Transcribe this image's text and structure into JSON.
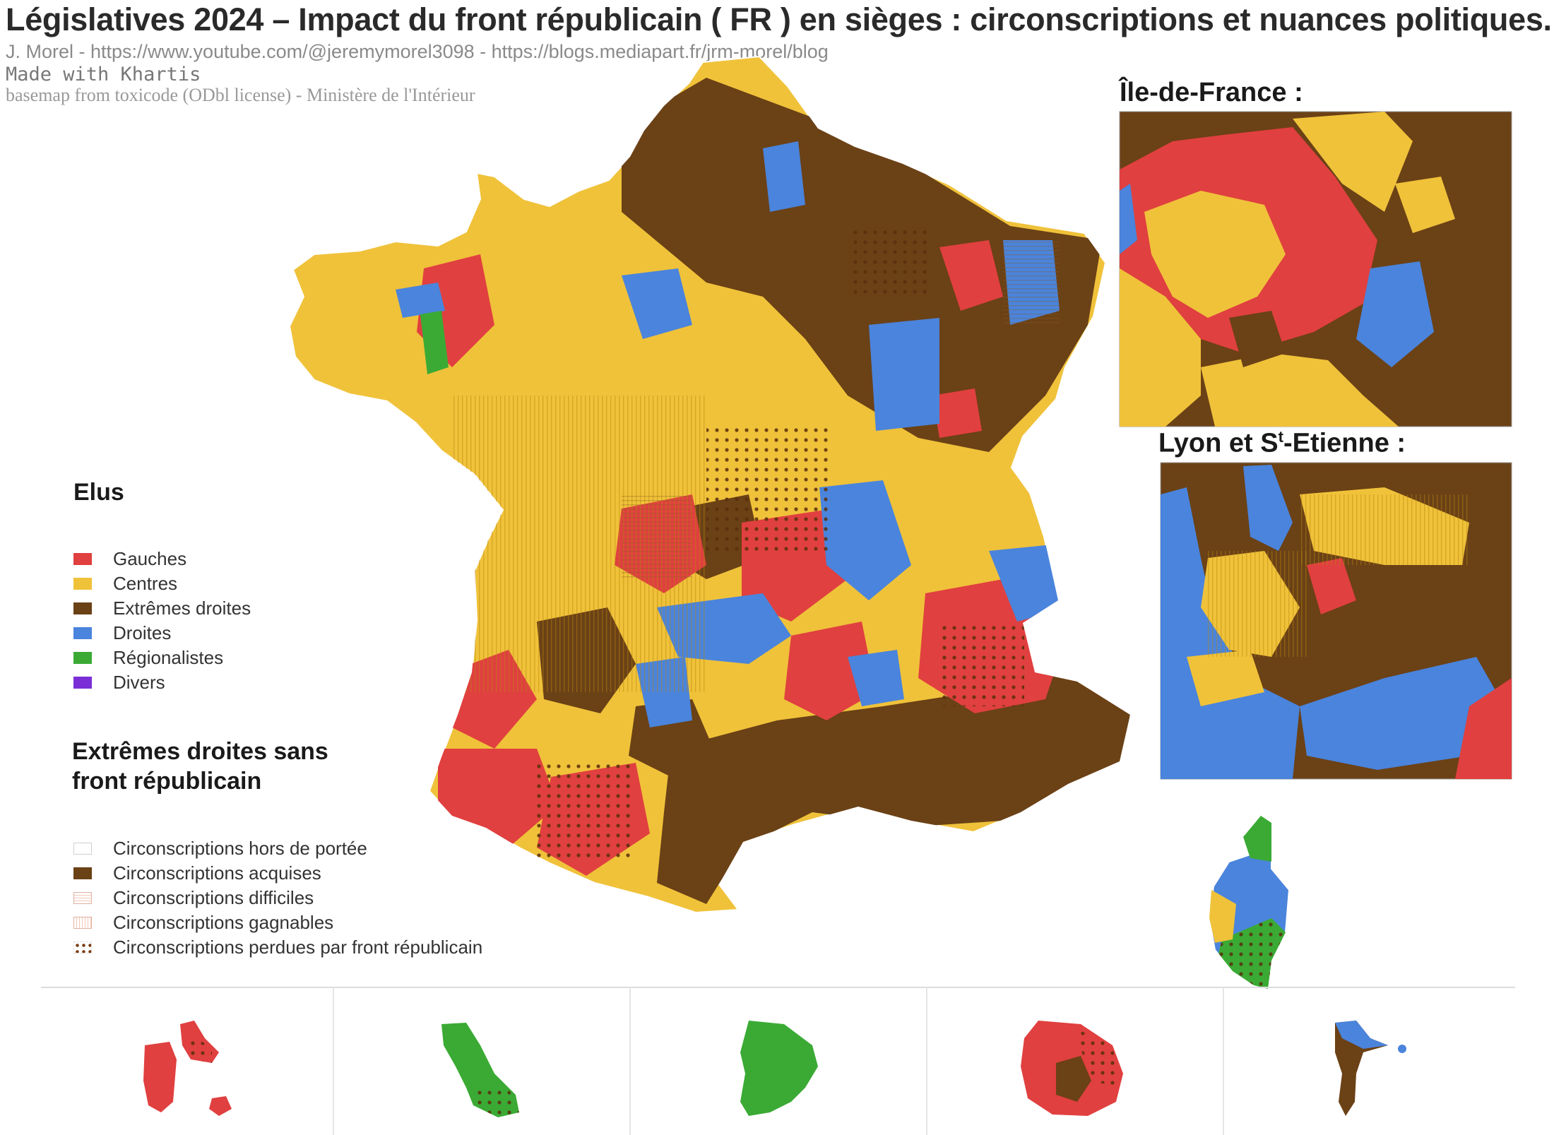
{
  "header": {
    "title": "Législatives 2024 – Impact du front républicain ( FR ) en sièges : circonscriptions et nuances politiques.",
    "credits": [
      "J. Morel - https://www.youtube.com/@jeremymorel3098 - https://blogs.mediapart.fr/jrm-morel/blog",
      "Made with Khartis",
      "basemap from toxicode (ODbl license) - Ministère de l'Intérieur"
    ]
  },
  "insets": {
    "idf_title": "Île-de-France :",
    "lyon_title_main": "Lyon et S",
    "lyon_title_sup": "t",
    "lyon_title_tail": "-Etienne :"
  },
  "legend_elus": {
    "title": "Elus",
    "items": [
      {
        "label": "Gauches",
        "color": "#e0403f"
      },
      {
        "label": "Centres",
        "color": "#f0c23a"
      },
      {
        "label": "Extrêmes droites",
        "color": "#6b4116"
      },
      {
        "label": "Droites",
        "color": "#4a84dc"
      },
      {
        "label": "Régionalistes",
        "color": "#3aaa35"
      },
      {
        "label": "Divers",
        "color": "#7a2fd6"
      }
    ]
  },
  "legend_fr": {
    "title_line1": "Extrêmes droites sans",
    "title_line2": "front républicain",
    "items": [
      {
        "label": "Circonscriptions hors de portée",
        "style": "outline"
      },
      {
        "label": "Circonscriptions acquises",
        "style": "filled",
        "color": "#6b4116"
      },
      {
        "label": "Circonscriptions difficiles",
        "style": "striped-h"
      },
      {
        "label": "Circonscriptions gagnables",
        "style": "striped-v"
      },
      {
        "label": "Circonscriptions perdues par front républicain",
        "style": "dotted"
      }
    ]
  },
  "overseas": [
    "guadeloupe",
    "martinique",
    "guyane",
    "reunion",
    "mayotte"
  ]
}
